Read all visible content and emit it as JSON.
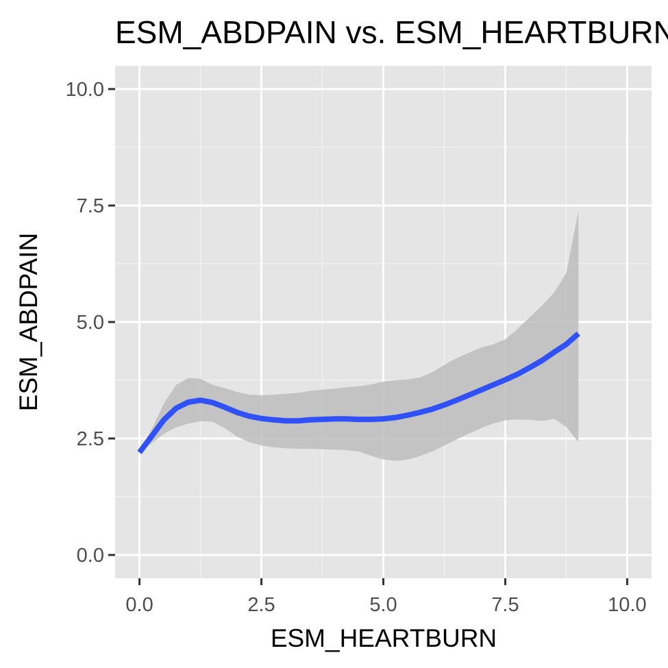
{
  "colors": {
    "panel_background": "#e5e5e5",
    "grid_major": "#ffffff",
    "grid_minor": "#f2f2f2",
    "tick_mark": "#333333",
    "tick_text": "#4d4d4d",
    "smooth_line": "#3050f8",
    "confidence_band": "#bdbdbd"
  },
  "chart_data": {
    "type": "line",
    "title": "ESM_ABDPAIN vs. ESM_HEARTBURN",
    "xlabel": "ESM_HEARTBURN",
    "ylabel": "ESM_ABDPAIN",
    "xlim": [
      -0.5,
      10.5
    ],
    "ylim": [
      -0.5,
      10.5
    ],
    "x_ticks": [
      0,
      2.5,
      5,
      7.5,
      10
    ],
    "y_ticks": [
      0,
      2.5,
      5,
      7.5,
      10
    ],
    "x_tick_labels": [
      "0.0",
      "2.5",
      "5.0",
      "7.5",
      "10.0"
    ],
    "y_tick_labels": [
      "0.0",
      "2.5",
      "5.0",
      "7.5",
      "10.0"
    ],
    "grid": true,
    "series": [
      {
        "kind": "smooth",
        "x": [
          0,
          0.25,
          0.5,
          0.75,
          1,
          1.25,
          1.5,
          1.75,
          2,
          2.25,
          2.5,
          2.75,
          3,
          3.25,
          3.5,
          3.75,
          4,
          4.25,
          4.5,
          4.75,
          5,
          5.25,
          5.5,
          5.75,
          6,
          6.25,
          6.5,
          6.75,
          7,
          7.25,
          7.5,
          7.75,
          8,
          8.25,
          8.5,
          8.75,
          9
        ],
        "y": [
          2.2,
          2.55,
          2.9,
          3.15,
          3.28,
          3.32,
          3.27,
          3.17,
          3.06,
          2.98,
          2.93,
          2.9,
          2.88,
          2.88,
          2.9,
          2.91,
          2.92,
          2.92,
          2.91,
          2.91,
          2.92,
          2.95,
          3.0,
          3.06,
          3.13,
          3.22,
          3.32,
          3.43,
          3.54,
          3.65,
          3.76,
          3.88,
          4.02,
          4.17,
          4.35,
          4.52,
          4.75
        ],
        "lower": [
          2.2,
          2.4,
          2.6,
          2.74,
          2.82,
          2.87,
          2.86,
          2.72,
          2.54,
          2.42,
          2.35,
          2.31,
          2.29,
          2.28,
          2.28,
          2.27,
          2.26,
          2.25,
          2.22,
          2.13,
          2.05,
          2.02,
          2.05,
          2.12,
          2.22,
          2.35,
          2.48,
          2.6,
          2.72,
          2.82,
          2.89,
          2.91,
          2.9,
          2.88,
          2.92,
          2.75,
          2.42
        ],
        "upper": [
          2.2,
          2.7,
          3.25,
          3.65,
          3.8,
          3.78,
          3.65,
          3.58,
          3.5,
          3.44,
          3.43,
          3.44,
          3.46,
          3.48,
          3.52,
          3.55,
          3.57,
          3.6,
          3.62,
          3.66,
          3.72,
          3.75,
          3.77,
          3.81,
          3.92,
          4.08,
          4.22,
          4.34,
          4.45,
          4.52,
          4.63,
          4.85,
          5.1,
          5.35,
          5.63,
          6.05,
          7.38
        ]
      }
    ]
  }
}
